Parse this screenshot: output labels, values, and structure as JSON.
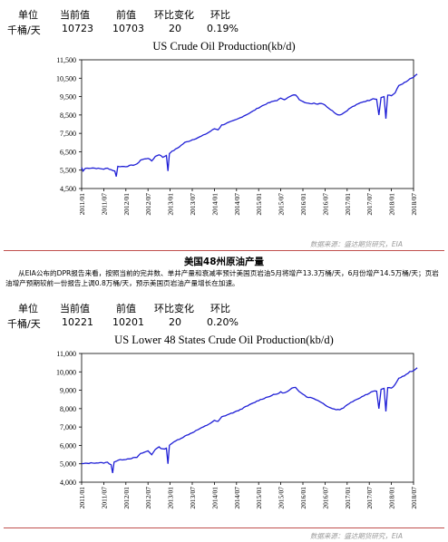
{
  "table1": {
    "headers": [
      "单位",
      "当前值",
      "前值",
      "环比变化",
      "环比"
    ],
    "values": [
      "千桶/天",
      "10723",
      "10703",
      "20",
      "0.19%"
    ]
  },
  "chart1": {
    "type": "line",
    "title": "US Crude Oil Production(kb/d)",
    "y_ticks": [
      "11,500",
      "10,500",
      "9,500",
      "8,500",
      "7,500",
      "6,500",
      "5,500",
      "4,500"
    ],
    "ylim": [
      4500,
      11500
    ],
    "x_ticks": [
      "2011/01",
      "2011/07",
      "2012/01",
      "2012/07",
      "2013/01",
      "2013/07",
      "2014/01",
      "2014/07",
      "2015/01",
      "2015/07",
      "2016/01",
      "2016/07",
      "2017/01",
      "2017/07",
      "2018/01",
      "2018/07"
    ],
    "line_color": "#1f1fd6",
    "source": "数据来源：盛达期货研究，EIA",
    "anchors": [
      [
        0,
        5650
      ],
      [
        0.4,
        5450
      ],
      [
        1,
        5600
      ],
      [
        3,
        5620
      ],
      [
        6,
        5560
      ],
      [
        7,
        5600
      ],
      [
        9,
        5450
      ],
      [
        9.4,
        5150
      ],
      [
        9.8,
        5700
      ],
      [
        12,
        5700
      ],
      [
        15,
        5820
      ],
      [
        16,
        6050
      ],
      [
        18,
        6150
      ],
      [
        19,
        6000
      ],
      [
        20,
        6250
      ],
      [
        21,
        6350
      ],
      [
        22,
        6200
      ],
      [
        23,
        6300
      ],
      [
        23.4,
        5450
      ],
      [
        23.8,
        6400
      ],
      [
        24,
        6450
      ],
      [
        26,
        6700
      ],
      [
        28,
        7000
      ],
      [
        30,
        7150
      ],
      [
        32,
        7300
      ],
      [
        34,
        7500
      ],
      [
        36,
        7750
      ],
      [
        37,
        7700
      ],
      [
        38,
        7950
      ],
      [
        40,
        8100
      ],
      [
        42,
        8250
      ],
      [
        44,
        8450
      ],
      [
        45,
        8550
      ],
      [
        46,
        8650
      ],
      [
        48,
        8900
      ],
      [
        50,
        9100
      ],
      [
        52,
        9250
      ],
      [
        53,
        9300
      ],
      [
        54,
        9400
      ],
      [
        55,
        9350
      ],
      [
        56,
        9450
      ],
      [
        57,
        9550
      ],
      [
        58,
        9600
      ],
      [
        59,
        9350
      ],
      [
        60,
        9250
      ],
      [
        61,
        9150
      ],
      [
        62,
        9100
      ],
      [
        63,
        9150
      ],
      [
        64,
        9100
      ],
      [
        65,
        9150
      ],
      [
        66,
        9050
      ],
      [
        67,
        8850
      ],
      [
        68,
        8750
      ],
      [
        69,
        8550
      ],
      [
        70,
        8500
      ],
      [
        71,
        8600
      ],
      [
        72,
        8750
      ],
      [
        73,
        8900
      ],
      [
        74,
        9000
      ],
      [
        75,
        9100
      ],
      [
        76,
        9200
      ],
      [
        77,
        9250
      ],
      [
        78,
        9300
      ],
      [
        79,
        9400
      ],
      [
        80,
        9350
      ],
      [
        80.6,
        8500
      ],
      [
        81.2,
        9450
      ],
      [
        82,
        9500
      ],
      [
        82.5,
        8300
      ],
      [
        83,
        9600
      ],
      [
        84,
        9550
      ],
      [
        85,
        9700
      ],
      [
        86,
        10100
      ],
      [
        87,
        10200
      ],
      [
        88,
        10300
      ],
      [
        89,
        10450
      ],
      [
        90,
        10550
      ],
      [
        91,
        10723
      ]
    ]
  },
  "section": {
    "title": "美国48州原油产量",
    "paragraph": "从EIA公布的DPR报告来看，按照当前的完井数、单井产量和衰减率预计美国页岩油5月将增产13.3万桶/天，6月份增产14.5万桶/天；页岩油增产预期较前一份报告上调0.8万桶/天，预示美国页岩油产量增长在加速。"
  },
  "table2": {
    "headers": [
      "单位",
      "当前值",
      "前值",
      "环比变化",
      "环比"
    ],
    "values": [
      "千桶/天",
      "10221",
      "10201",
      "20",
      "0.20%"
    ]
  },
  "chart2": {
    "type": "line",
    "title": "US Lower 48 States Crude Oil Production(kb/d)",
    "y_ticks": [
      "11,000",
      "10,000",
      "9,000",
      "8,000",
      "7,000",
      "6,000",
      "5,000",
      "4,000"
    ],
    "ylim": [
      4000,
      11000
    ],
    "x_ticks": [
      "2011/01",
      "2011/07",
      "2012/01",
      "2012/07",
      "2013/01",
      "2013/07",
      "2014/01",
      "2014/07",
      "2015/01",
      "2015/07",
      "2016/01",
      "2016/07",
      "2017/01",
      "2017/07",
      "2018/01",
      "2018/07"
    ],
    "line_color": "#1f1fd6",
    "source": "数据来源：盛达期货研究，EIA",
    "anchors": [
      [
        0,
        5000
      ],
      [
        3,
        5050
      ],
      [
        6,
        5050
      ],
      [
        7,
        5080
      ],
      [
        8,
        4950
      ],
      [
        8.4,
        4500
      ],
      [
        8.8,
        5100
      ],
      [
        10,
        5200
      ],
      [
        12,
        5250
      ],
      [
        15,
        5350
      ],
      [
        16,
        5550
      ],
      [
        18,
        5700
      ],
      [
        19,
        5500
      ],
      [
        20,
        5800
      ],
      [
        21,
        5900
      ],
      [
        22,
        5800
      ],
      [
        23,
        5850
      ],
      [
        23.4,
        5000
      ],
      [
        23.8,
        6000
      ],
      [
        24,
        6050
      ],
      [
        26,
        6300
      ],
      [
        28,
        6500
      ],
      [
        30,
        6700
      ],
      [
        32,
        6900
      ],
      [
        34,
        7100
      ],
      [
        36,
        7350
      ],
      [
        37,
        7300
      ],
      [
        38,
        7550
      ],
      [
        40,
        7700
      ],
      [
        42,
        7850
      ],
      [
        44,
        8050
      ],
      [
        45,
        8150
      ],
      [
        46,
        8250
      ],
      [
        48,
        8450
      ],
      [
        50,
        8600
      ],
      [
        52,
        8750
      ],
      [
        53,
        8800
      ],
      [
        54,
        8900
      ],
      [
        55,
        8850
      ],
      [
        56,
        8950
      ],
      [
        57,
        9100
      ],
      [
        58,
        9150
      ],
      [
        59,
        8950
      ],
      [
        60,
        8800
      ],
      [
        61,
        8650
      ],
      [
        62,
        8600
      ],
      [
        63,
        8550
      ],
      [
        64,
        8450
      ],
      [
        65,
        8350
      ],
      [
        66,
        8200
      ],
      [
        67,
        8100
      ],
      [
        68,
        8000
      ],
      [
        69,
        7950
      ],
      [
        70,
        7950
      ],
      [
        71,
        8050
      ],
      [
        72,
        8200
      ],
      [
        73,
        8350
      ],
      [
        74,
        8450
      ],
      [
        75,
        8550
      ],
      [
        76,
        8650
      ],
      [
        77,
        8750
      ],
      [
        78,
        8850
      ],
      [
        79,
        8950
      ],
      [
        80,
        8950
      ],
      [
        80.6,
        8000
      ],
      [
        81.2,
        9050
      ],
      [
        82,
        9100
      ],
      [
        82.5,
        7850
      ],
      [
        83,
        9150
      ],
      [
        84,
        9100
      ],
      [
        85,
        9300
      ],
      [
        86,
        9650
      ],
      [
        87,
        9750
      ],
      [
        88,
        9850
      ],
      [
        89,
        10000
      ],
      [
        90,
        10050
      ],
      [
        91,
        10221
      ]
    ]
  }
}
